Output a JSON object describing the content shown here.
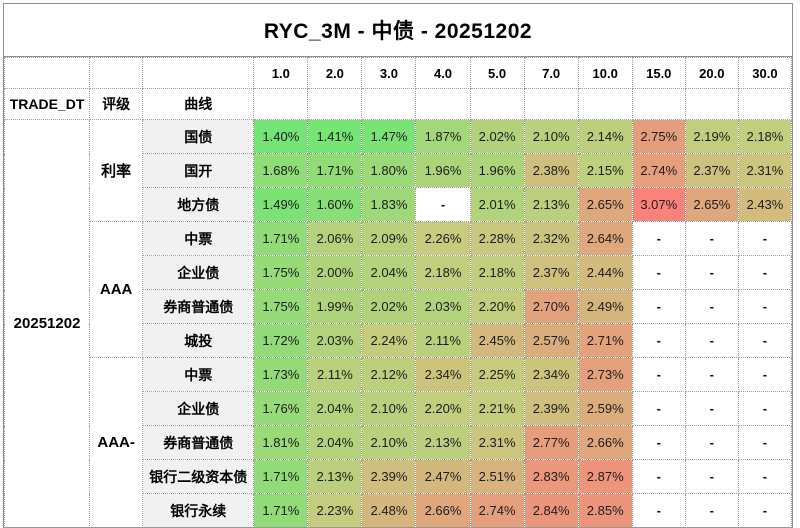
{
  "title": "RYC_3M - 中债 - 20251202",
  "colors": {
    "scale_min_color": "#74E574",
    "scale_mid_color": "#C6CC7E",
    "scale_max_color": "#F9827A",
    "row_label_bg": "#F1F1F1",
    "grid_border": "#9E9E9E",
    "text": "#1C1C1C"
  },
  "chart_data": {
    "type": "heatmap",
    "title": "RYC_3M - 中债 - 20251202",
    "columns": [
      "1.0",
      "2.0",
      "3.0",
      "4.0",
      "5.0",
      "7.0",
      "10.0",
      "15.0",
      "20.0",
      "30.0"
    ],
    "corner_headers": {
      "trade_dt": "TRADE_DT",
      "rating": "评级",
      "curve": "曲线"
    },
    "trade_date": "20251202",
    "value_format": "percent",
    "missing_label": "-",
    "scale": {
      "min": 1.4,
      "max": 3.07
    },
    "groups": [
      {
        "rating": "利率",
        "rows": [
          {
            "curve": "国债",
            "values": [
              1.4,
              1.41,
              1.47,
              1.87,
              2.02,
              2.1,
              2.14,
              2.75,
              2.19,
              2.18
            ]
          },
          {
            "curve": "国开",
            "values": [
              1.68,
              1.71,
              1.8,
              1.96,
              1.96,
              2.38,
              2.15,
              2.74,
              2.37,
              2.31
            ]
          },
          {
            "curve": "地方债",
            "values": [
              1.49,
              1.6,
              1.83,
              null,
              2.01,
              2.13,
              2.65,
              3.07,
              2.65,
              2.43
            ]
          }
        ]
      },
      {
        "rating": "AAA",
        "rows": [
          {
            "curve": "中票",
            "values": [
              1.71,
              2.06,
              2.09,
              2.26,
              2.28,
              2.32,
              2.64,
              null,
              null,
              null
            ]
          },
          {
            "curve": "企业债",
            "values": [
              1.75,
              2.0,
              2.04,
              2.18,
              2.18,
              2.37,
              2.44,
              null,
              null,
              null
            ]
          },
          {
            "curve": "券商普通债",
            "values": [
              1.75,
              1.99,
              2.02,
              2.03,
              2.2,
              2.7,
              2.49,
              null,
              null,
              null
            ]
          },
          {
            "curve": "城投",
            "values": [
              1.72,
              2.03,
              2.24,
              2.11,
              2.45,
              2.57,
              2.71,
              null,
              null,
              null
            ]
          }
        ]
      },
      {
        "rating": "AAA-",
        "rows": [
          {
            "curve": "中票",
            "values": [
              1.73,
              2.11,
              2.12,
              2.34,
              2.25,
              2.34,
              2.73,
              null,
              null,
              null
            ]
          },
          {
            "curve": "企业债",
            "values": [
              1.76,
              2.04,
              2.1,
              2.2,
              2.21,
              2.39,
              2.59,
              null,
              null,
              null
            ]
          },
          {
            "curve": "券商普通债",
            "values": [
              1.81,
              2.04,
              2.1,
              2.13,
              2.31,
              2.77,
              2.66,
              null,
              null,
              null
            ]
          },
          {
            "curve": "银行二级资本债",
            "values": [
              1.71,
              2.13,
              2.39,
              2.47,
              2.51,
              2.83,
              2.87,
              null,
              null,
              null
            ]
          },
          {
            "curve": "银行永续",
            "values": [
              1.71,
              2.23,
              2.48,
              2.66,
              2.74,
              2.84,
              2.85,
              null,
              null,
              null
            ]
          }
        ]
      }
    ]
  }
}
